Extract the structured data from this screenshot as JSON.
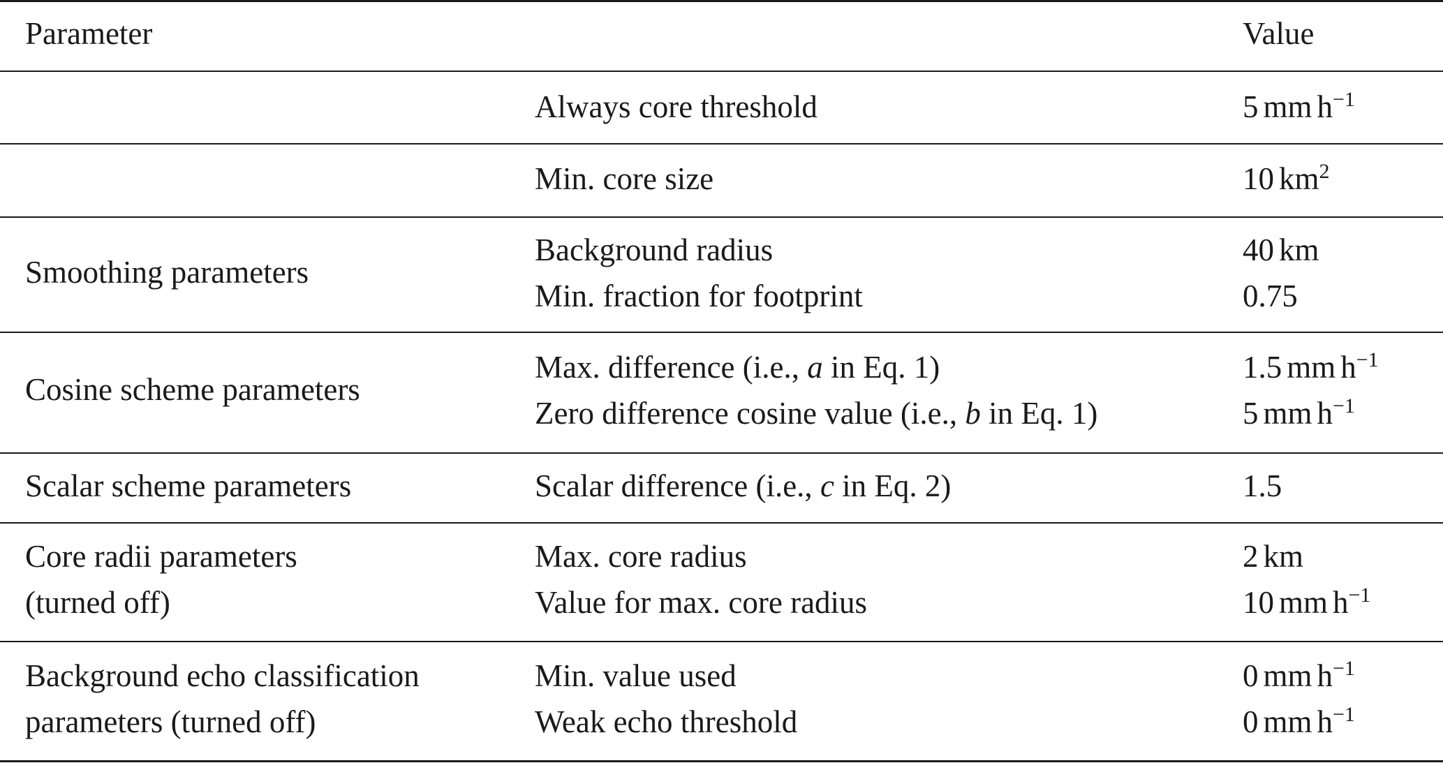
{
  "header": {
    "parameter": "Parameter",
    "value": "Value"
  },
  "rows": [
    {
      "group": [],
      "names": [
        "Always core threshold"
      ],
      "values": [
        {
          "num": "5",
          "unit": "mm",
          "unit2": "h",
          "exp": "−1"
        }
      ]
    },
    {
      "group": [],
      "names": [
        "Min. core size"
      ],
      "values": [
        {
          "num": "10",
          "unit": "km",
          "unit2": "",
          "exp": "2"
        }
      ]
    },
    {
      "group": [
        "Smoothing parameters"
      ],
      "names": [
        "Background radius",
        "Min. fraction for footprint"
      ],
      "values": [
        {
          "num": "40",
          "unit": "km",
          "unit2": "",
          "exp": ""
        },
        {
          "num": "0.75",
          "unit": "",
          "unit2": "",
          "exp": ""
        }
      ]
    },
    {
      "group": [
        "Cosine scheme parameters"
      ],
      "names": [
        {
          "pre": "Max. difference (i.e., ",
          "var": "a",
          "post": " in Eq. 1)"
        },
        {
          "pre": "Zero difference cosine value (i.e., ",
          "var": "b",
          "post": " in Eq. 1)"
        }
      ],
      "values": [
        {
          "num": "1.5",
          "unit": "mm",
          "unit2": "h",
          "exp": "−1"
        },
        {
          "num": "5",
          "unit": "mm",
          "unit2": "h",
          "exp": "−1"
        }
      ]
    },
    {
      "group": [
        "Scalar scheme parameters"
      ],
      "names": [
        {
          "pre": "Scalar difference (i.e., ",
          "var": "c",
          "post": " in Eq. 2)"
        }
      ],
      "values": [
        {
          "num": "1.5",
          "unit": "",
          "unit2": "",
          "exp": ""
        }
      ]
    },
    {
      "group": [
        "Core radii parameters",
        "(turned off)"
      ],
      "names": [
        "Max. core radius",
        "Value for max. core radius"
      ],
      "values": [
        {
          "num": "2",
          "unit": "km",
          "unit2": "",
          "exp": ""
        },
        {
          "num": "10",
          "unit": "mm",
          "unit2": "h",
          "exp": "−1"
        }
      ]
    },
    {
      "group": [
        "Background echo classification",
        "parameters (turned off)"
      ],
      "names": [
        "Min. value used",
        "Weak echo threshold"
      ],
      "values": [
        {
          "num": "0",
          "unit": "mm",
          "unit2": "h",
          "exp": "−1"
        },
        {
          "num": "0",
          "unit": "mm",
          "unit2": "h",
          "exp": "−1"
        }
      ]
    }
  ]
}
